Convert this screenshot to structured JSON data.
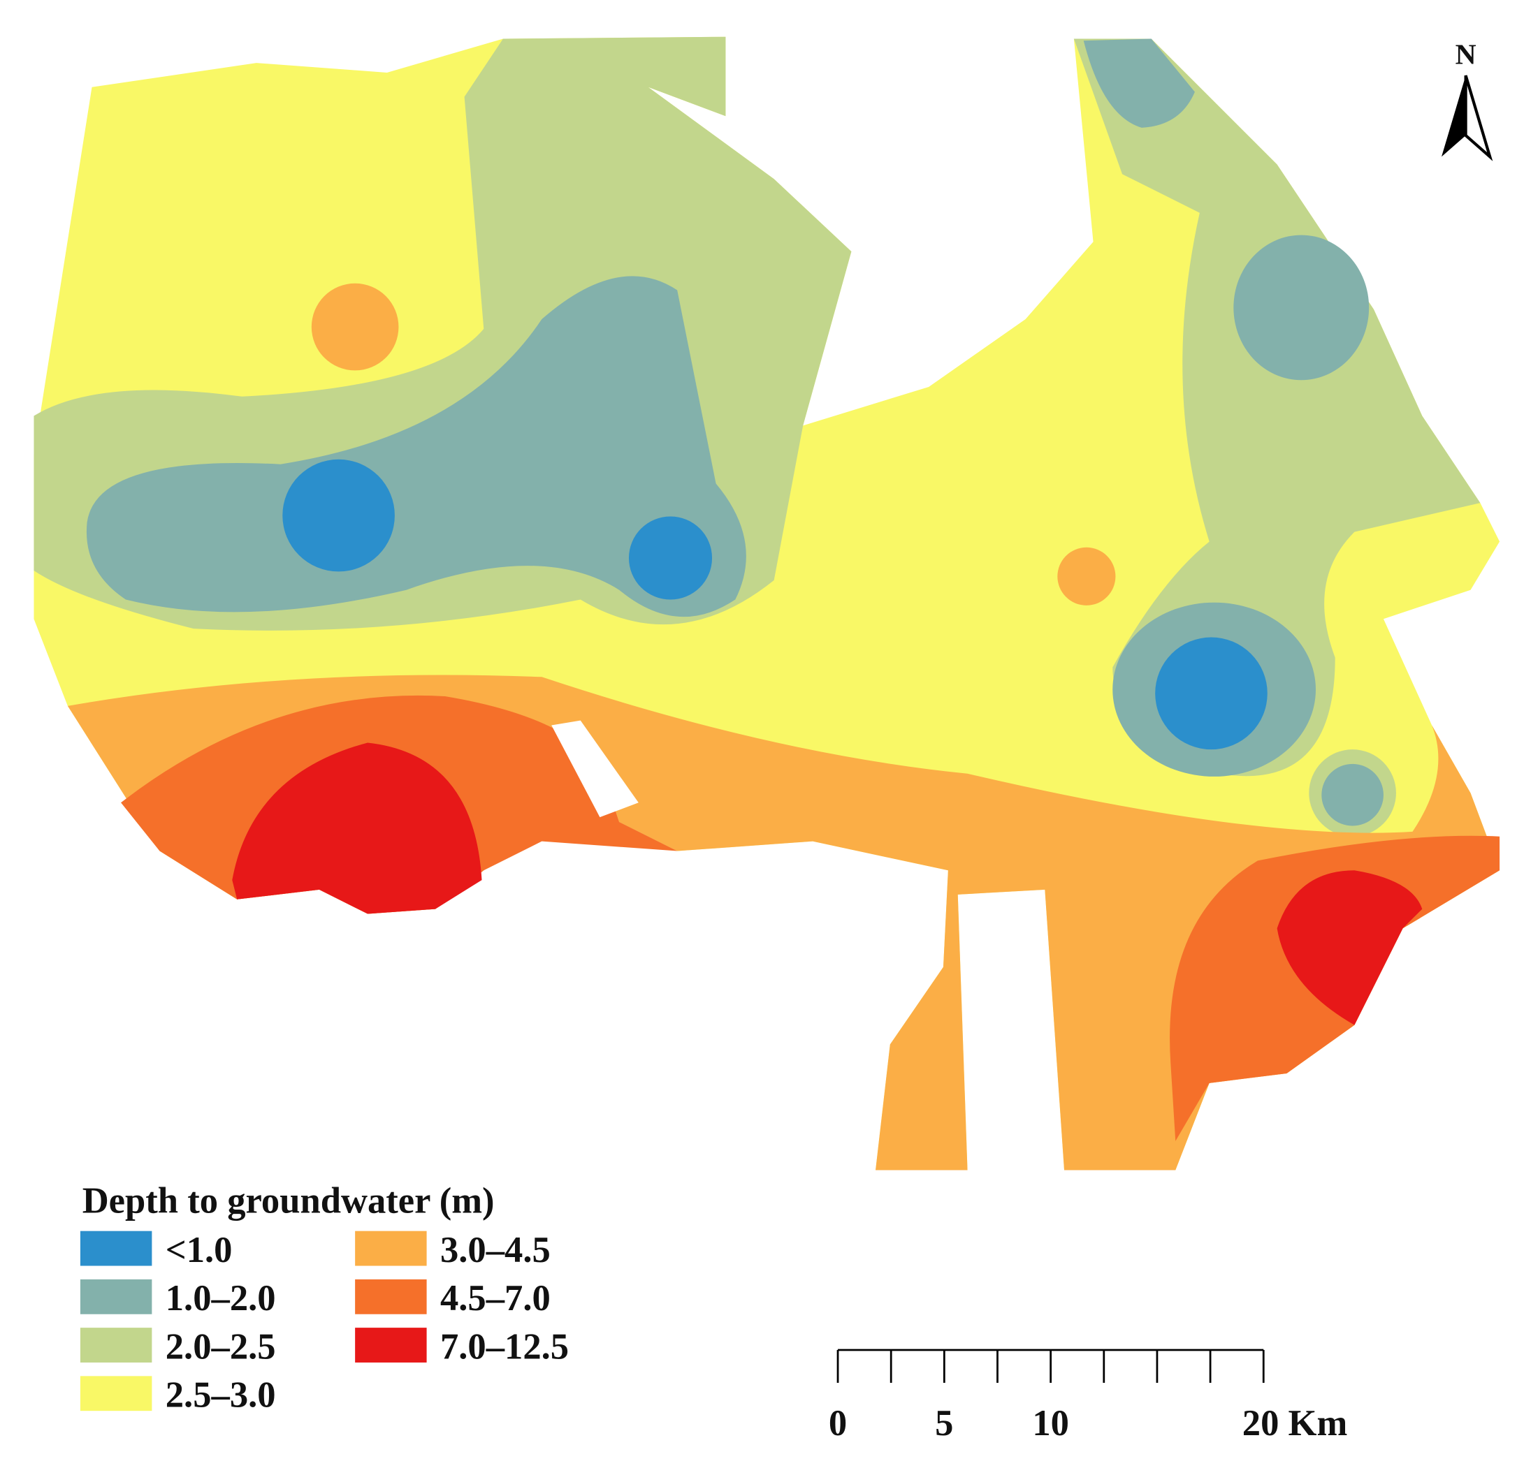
{
  "legend": {
    "title": "Depth to groundwater (m)",
    "items": [
      {
        "label": "<1.0",
        "color": "#2b8fcc"
      },
      {
        "label": "1.0–2.0",
        "color": "#83b1ab"
      },
      {
        "label": "2.0–2.5",
        "color": "#c2d68c"
      },
      {
        "label": "2.5–3.0",
        "color": "#f9f866"
      },
      {
        "label": "3.0–4.5",
        "color": "#fbae46"
      },
      {
        "label": "4.5–7.0",
        "color": "#f5702a"
      },
      {
        "label": "7.0–12.5",
        "color": "#e71818"
      }
    ]
  },
  "north_arrow": "N",
  "scale_bar": {
    "ticks": [
      0,
      2.5,
      5,
      7.5,
      10,
      12.5,
      15,
      17.5,
      20
    ],
    "labels": [
      {
        "value": 0,
        "label": "0"
      },
      {
        "value": 5,
        "label": "5"
      },
      {
        "value": 10,
        "label": "10"
      },
      {
        "value": 20,
        "label": "20 Km"
      }
    ]
  }
}
